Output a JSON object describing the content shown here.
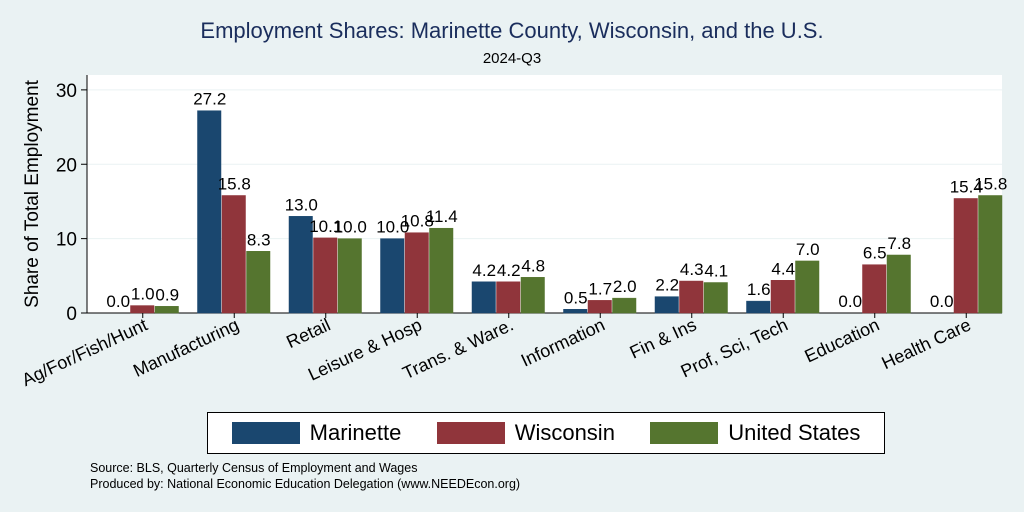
{
  "chart_data": {
    "type": "bar",
    "title": "Employment Shares: Marinette County, Wisconsin, and the U.S.",
    "subtitle": "2024-Q3",
    "ylabel": "Share of Total Employment",
    "xlabel": "",
    "ylim": [
      0,
      32
    ],
    "yticks": [
      0,
      10,
      20,
      30
    ],
    "categories": [
      "Ag/For/Fish/Hunt",
      "Manufacturing",
      "Retail",
      "Leisure & Hosp",
      "Trans. & Ware.",
      "Information",
      "Fin & Ins",
      "Prof, Sci, Tech",
      "Education",
      "Health Care"
    ],
    "series": [
      {
        "name": "Marinette",
        "color": "#1a476f",
        "values": [
          0.0,
          27.2,
          13.0,
          10.0,
          4.2,
          0.5,
          2.2,
          1.6,
          0.0,
          0.0
        ],
        "labels": [
          "0.0",
          "27.2",
          "13.0",
          "10.0",
          "4.2",
          "0.5",
          "2.2",
          "1.6",
          "0.0",
          "0.0"
        ]
      },
      {
        "name": "Wisconsin",
        "color": "#90353b",
        "values": [
          1.0,
          15.8,
          10.1,
          10.8,
          4.2,
          1.7,
          4.3,
          4.4,
          6.5,
          15.4
        ],
        "labels": [
          "1.0",
          "15.8",
          "10.1",
          "10.8",
          "4.2",
          "1.7",
          "4.3",
          "4.4",
          "6.5",
          "15.4"
        ]
      },
      {
        "name": "United States",
        "color": "#55752f",
        "values": [
          0.9,
          8.3,
          10.0,
          11.4,
          4.8,
          2.0,
          4.1,
          7.0,
          7.8,
          15.8
        ],
        "labels": [
          "0.9",
          "8.3",
          "10.0",
          "11.4",
          "4.8",
          "2.0",
          "4.1",
          "7.0",
          "7.8",
          "15.8"
        ]
      }
    ],
    "legend_position": "bottom",
    "grid": true
  },
  "notes": {
    "source": "Source: BLS, Quarterly Census of Employment and Wages",
    "produced_by": "Produced by: National Economic Education Delegation (www.NEEDEcon.org)"
  }
}
